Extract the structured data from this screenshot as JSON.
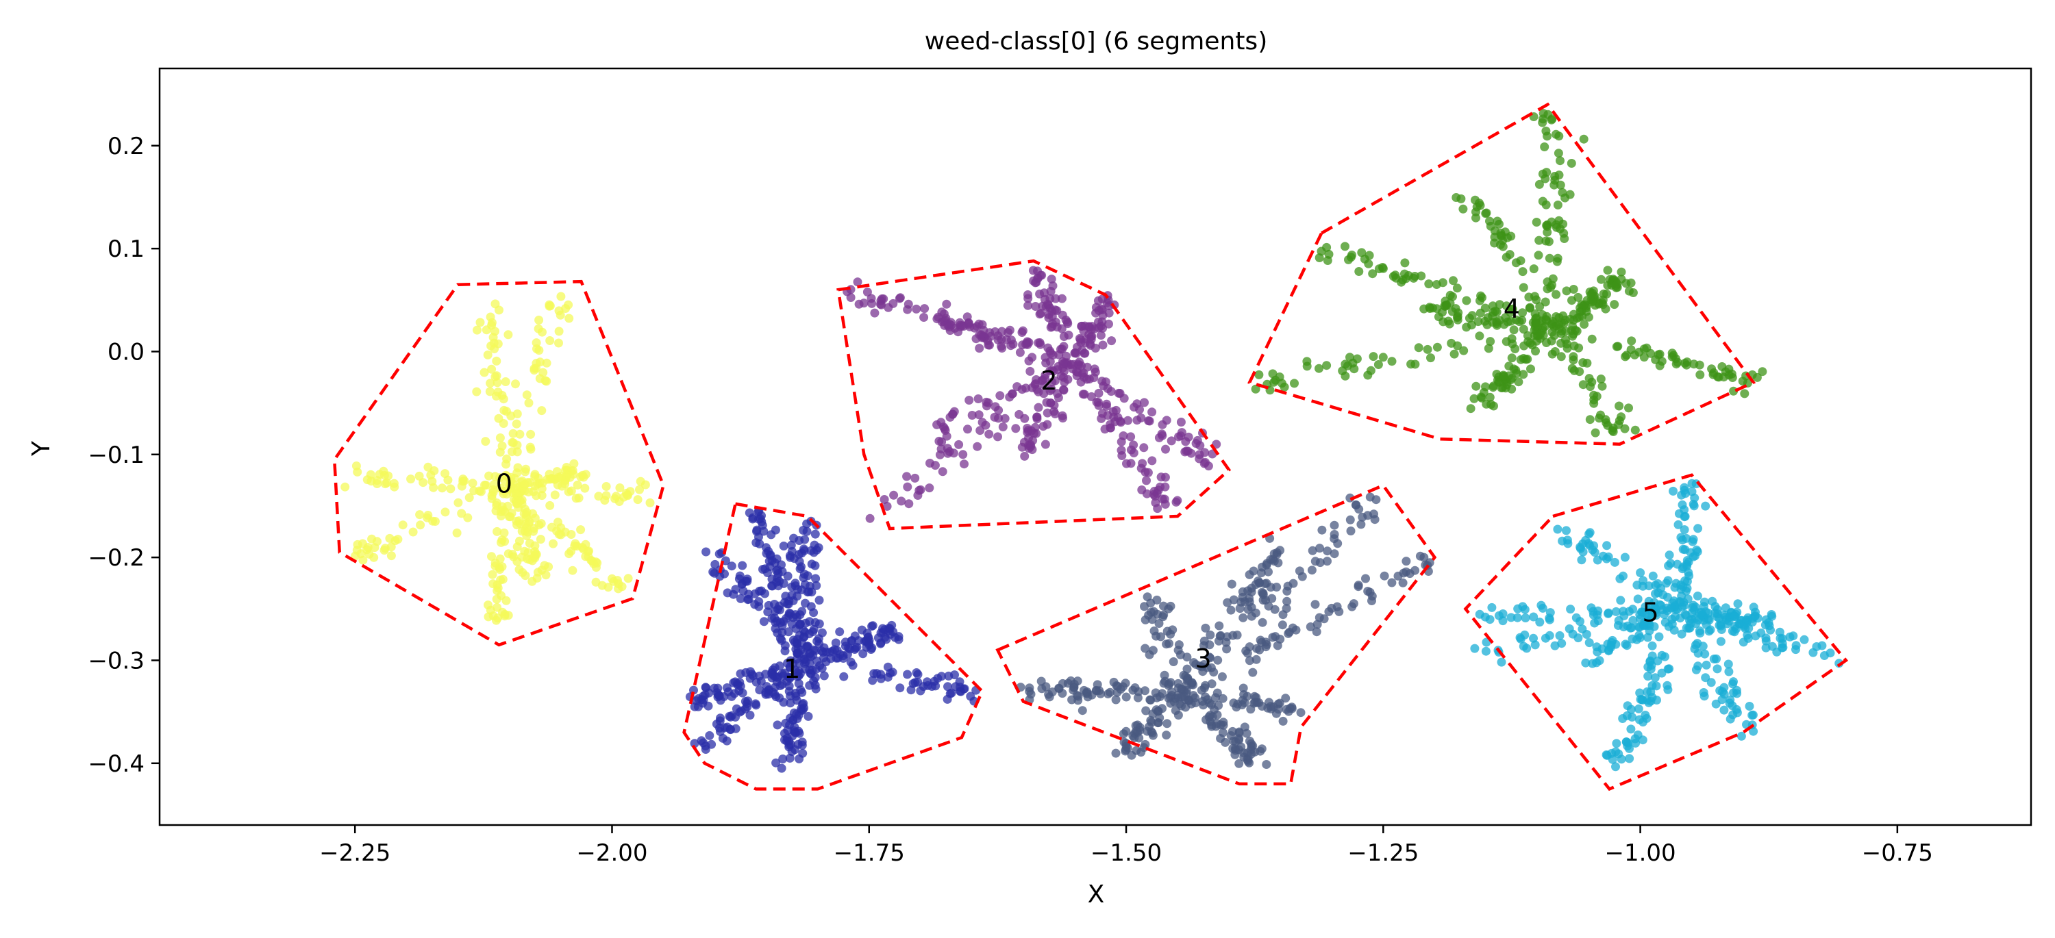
{
  "chart_data": {
    "type": "scatter",
    "title": "weed-class[0] (6 segments)",
    "xlabel": "X",
    "ylabel": "Y",
    "xlim": [
      -2.44,
      -0.62
    ],
    "ylim": [
      -0.46,
      0.275
    ],
    "xticks": [
      -2.25,
      -2.0,
      -1.75,
      -1.5,
      -1.25,
      -1.0,
      -0.75
    ],
    "yticks": [
      0.2,
      0.1,
      0.0,
      -0.1,
      -0.2,
      -0.3,
      -0.4
    ],
    "xtick_labels": [
      "−2.25",
      "−2.00",
      "−1.75",
      "−1.50",
      "−1.25",
      "−1.00",
      "−0.75"
    ],
    "ytick_labels": [
      "0.2",
      "0.1",
      "0.0",
      "−0.1",
      "−0.2",
      "−0.3",
      "−0.4"
    ],
    "grid": false,
    "hull_color": "#ff0000",
    "segments": [
      {
        "label": "0",
        "color": "#f4f95a",
        "center": [
          -2.1,
          -0.13
        ],
        "label_pos": [
          -2.105,
          -0.13
        ],
        "hull": [
          [
            -2.15,
            0.065
          ],
          [
            -2.03,
            0.068
          ],
          [
            -1.95,
            -0.13
          ],
          [
            -1.98,
            -0.24
          ],
          [
            -2.11,
            -0.285
          ],
          [
            -2.265,
            -0.195
          ],
          [
            -2.27,
            -0.105
          ]
        ],
        "arms": [
          [
            -2.12,
            0.04
          ],
          [
            -2.05,
            0.06
          ],
          [
            -2.25,
            -0.12
          ],
          [
            -2.25,
            -0.2
          ],
          [
            -1.96,
            -0.14
          ],
          [
            -1.99,
            -0.23
          ],
          [
            -2.11,
            -0.26
          ],
          [
            -2.07,
            -0.22
          ],
          [
            -2.03,
            -0.12
          ]
        ],
        "n": 420
      },
      {
        "label": "1",
        "color": "#2b2fa8",
        "center": [
          -1.81,
          -0.3
        ],
        "label_pos": [
          -1.825,
          -0.31
        ],
        "hull": [
          [
            -1.88,
            -0.148
          ],
          [
            -1.81,
            -0.16
          ],
          [
            -1.64,
            -0.33
          ],
          [
            -1.66,
            -0.375
          ],
          [
            -1.8,
            -0.425
          ],
          [
            -1.86,
            -0.425
          ],
          [
            -1.91,
            -0.4
          ],
          [
            -1.93,
            -0.37
          ]
        ],
        "arms": [
          [
            -1.86,
            -0.16
          ],
          [
            -1.81,
            -0.17
          ],
          [
            -1.65,
            -0.33
          ],
          [
            -1.91,
            -0.38
          ],
          [
            -1.92,
            -0.34
          ],
          [
            -1.83,
            -0.4
          ],
          [
            -1.9,
            -0.2
          ],
          [
            -1.72,
            -0.27
          ]
        ],
        "n": 520
      },
      {
        "label": "2",
        "color": "#7a3592",
        "center": [
          -1.55,
          -0.01
        ],
        "label_pos": [
          -1.575,
          -0.03
        ],
        "hull": [
          [
            -1.78,
            0.06
          ],
          [
            -1.59,
            0.088
          ],
          [
            -1.52,
            0.055
          ],
          [
            -1.4,
            -0.115
          ],
          [
            -1.45,
            -0.16
          ],
          [
            -1.73,
            -0.172
          ],
          [
            -1.755,
            -0.1
          ]
        ],
        "arms": [
          [
            -1.77,
            0.06
          ],
          [
            -1.59,
            0.075
          ],
          [
            -1.41,
            -0.11
          ],
          [
            -1.46,
            -0.15
          ],
          [
            -1.74,
            -0.16
          ],
          [
            -1.69,
            -0.08
          ],
          [
            -1.52,
            0.05
          ],
          [
            -1.68,
            0.03
          ],
          [
            -1.6,
            -0.1
          ]
        ],
        "n": 470
      },
      {
        "label": "3",
        "color": "#4a5a80",
        "center": [
          -1.45,
          -0.33
        ],
        "label_pos": [
          -1.425,
          -0.3
        ],
        "hull": [
          [
            -1.625,
            -0.29
          ],
          [
            -1.25,
            -0.13
          ],
          [
            -1.2,
            -0.2
          ],
          [
            -1.33,
            -0.365
          ],
          [
            -1.34,
            -0.42
          ],
          [
            -1.39,
            -0.42
          ],
          [
            -1.6,
            -0.34
          ]
        ],
        "arms": [
          [
            -1.25,
            -0.14
          ],
          [
            -1.2,
            -0.2
          ],
          [
            -1.35,
            -0.19
          ],
          [
            -1.6,
            -0.33
          ],
          [
            -1.37,
            -0.4
          ],
          [
            -1.47,
            -0.24
          ],
          [
            -1.33,
            -0.35
          ],
          [
            -1.5,
            -0.39
          ]
        ],
        "n": 450
      },
      {
        "label": "4",
        "color": "#3d9317",
        "center": [
          -1.08,
          0.02
        ],
        "label_pos": [
          -1.125,
          0.04
        ],
        "hull": [
          [
            -1.31,
            0.115
          ],
          [
            -1.09,
            0.24
          ],
          [
            -0.89,
            -0.03
          ],
          [
            -1.02,
            -0.09
          ],
          [
            -1.195,
            -0.085
          ],
          [
            -1.38,
            -0.03
          ]
        ],
        "arms": [
          [
            -1.09,
            0.23
          ],
          [
            -0.89,
            -0.03
          ],
          [
            -1.02,
            -0.08
          ],
          [
            -1.38,
            -0.03
          ],
          [
            -1.31,
            0.1
          ],
          [
            -1.17,
            0.16
          ],
          [
            -1.16,
            -0.05
          ],
          [
            -1.02,
            0.07
          ],
          [
            -1.2,
            0.04
          ]
        ],
        "n": 500
      },
      {
        "label": "5",
        "color": "#1aaed6",
        "center": [
          -0.96,
          -0.25
        ],
        "label_pos": [
          -0.99,
          -0.255
        ],
        "hull": [
          [
            -1.085,
            -0.16
          ],
          [
            -0.95,
            -0.12
          ],
          [
            -0.8,
            -0.3
          ],
          [
            -0.9,
            -0.37
          ],
          [
            -1.03,
            -0.425
          ],
          [
            -1.17,
            -0.25
          ]
        ],
        "arms": [
          [
            -1.08,
            -0.17
          ],
          [
            -0.95,
            -0.13
          ],
          [
            -0.81,
            -0.3
          ],
          [
            -0.9,
            -0.36
          ],
          [
            -1.02,
            -0.4
          ],
          [
            -1.16,
            -0.26
          ],
          [
            -1.15,
            -0.29
          ],
          [
            -0.88,
            -0.26
          ],
          [
            -1.05,
            -0.3
          ]
        ],
        "n": 470
      }
    ]
  }
}
